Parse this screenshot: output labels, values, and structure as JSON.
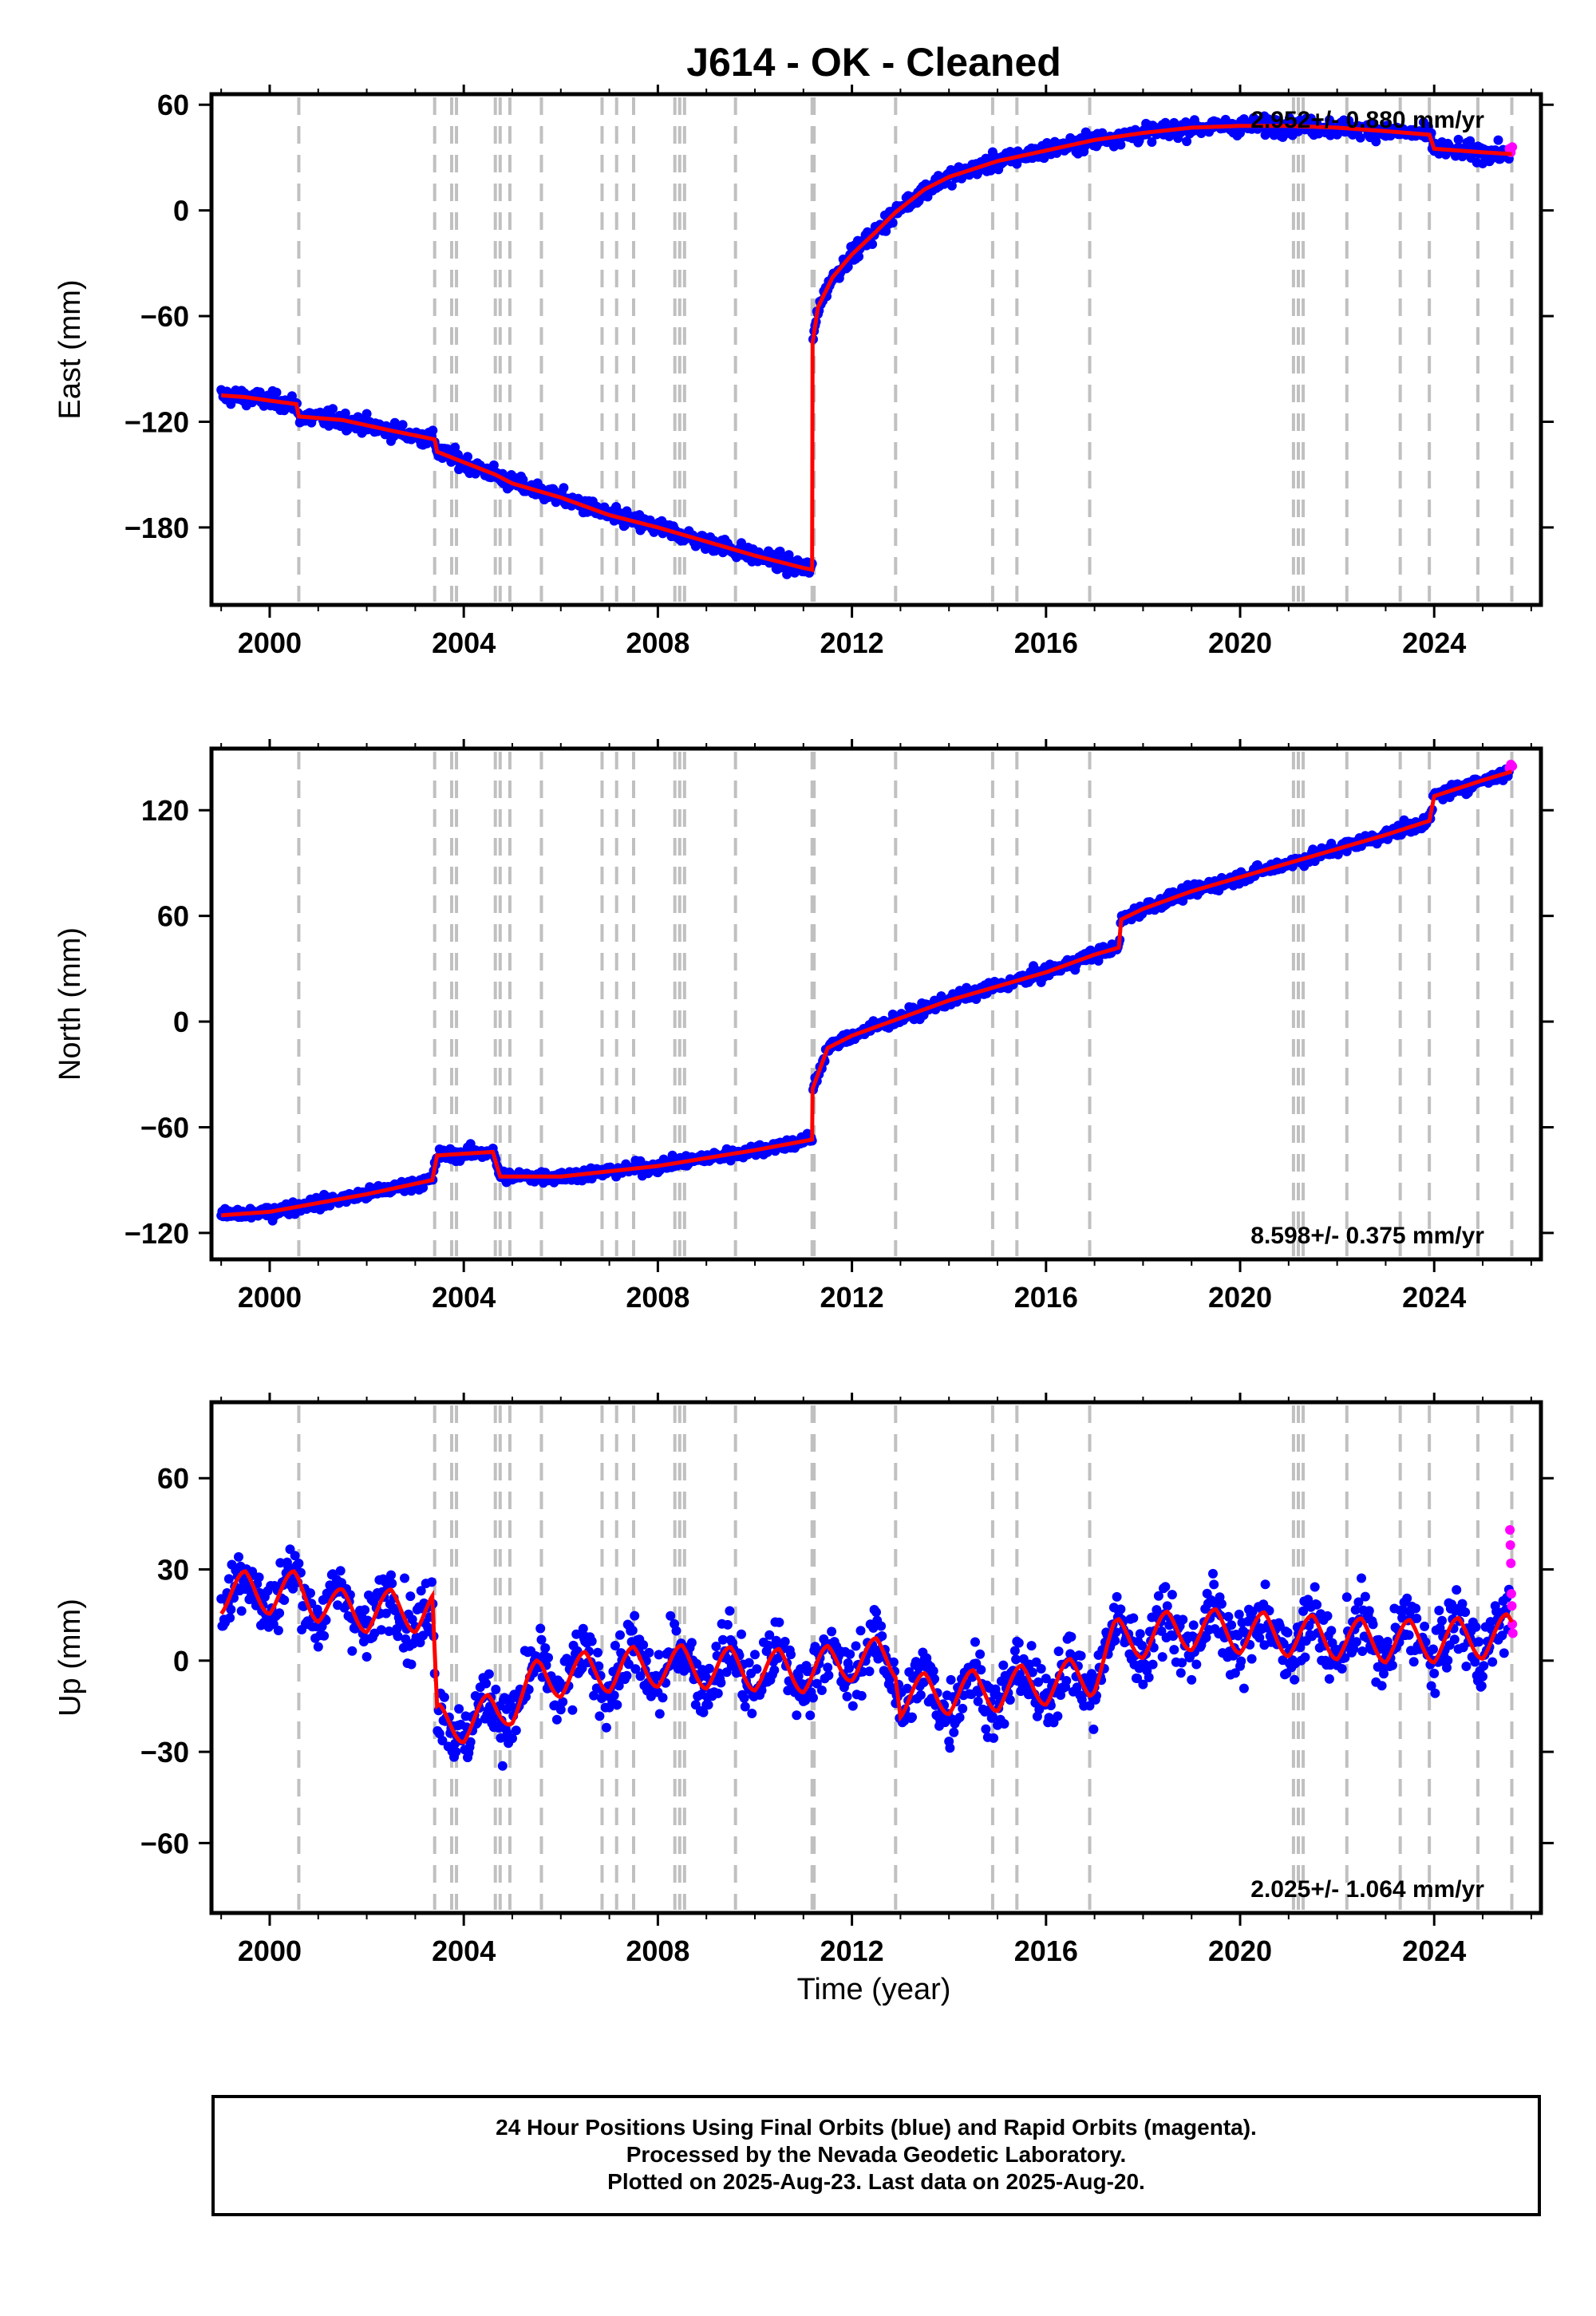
{
  "title": "J614  - OK - Cleaned",
  "caption": {
    "line1": "24 Hour Positions Using Final Orbits (blue) and Rapid Orbits (magenta).",
    "line2": "Processed by the Nevada Geodetic Laboratory.",
    "line3": "Plotted on 2025-Aug-23. Last data on 2025-Aug-20."
  },
  "colors": {
    "final_orbits": "#0000ff",
    "rapid_orbits": "#ff00ff",
    "model": "#ff0000",
    "event_lines": "#c0c0c0"
  },
  "chart_data": [
    {
      "type": "scatter",
      "panel": "east",
      "ylabel": "East (mm)",
      "xlabel": "",
      "xlim": [
        1998.8,
        2026.2
      ],
      "ylim": [
        -224,
        66
      ],
      "xticks": [
        2000,
        2004,
        2008,
        2012,
        2016,
        2020,
        2024
      ],
      "yticks": [
        60,
        0,
        -60,
        -120,
        -180
      ],
      "rate_label": "2.952+/- 0.880 mm/yr",
      "rate_position": "top-right",
      "event_lines": [
        2000.6,
        2003.4,
        2003.75,
        2003.85,
        2004.65,
        2004.75,
        2004.95,
        2005.6,
        2006.85,
        2007.15,
        2007.5,
        2008.35,
        2008.45,
        2008.55,
        2009.6,
        2011.18,
        2011.22,
        2012.9,
        2014.9,
        2015.4,
        2016.9,
        2021.1,
        2021.2,
        2021.3,
        2022.2,
        2023.3,
        2023.9,
        2024.9,
        2025.6
      ],
      "model_curve": [
        [
          1999.0,
          -105
        ],
        [
          1999.5,
          -106
        ],
        [
          2000.0,
          -108
        ],
        [
          2000.55,
          -110
        ],
        [
          2000.6,
          -117
        ],
        [
          2001.5,
          -119
        ],
        [
          2002.5,
          -125
        ],
        [
          2003.4,
          -130
        ],
        [
          2003.45,
          -137
        ],
        [
          2004.0,
          -143
        ],
        [
          2004.65,
          -150
        ],
        [
          2005.0,
          -155
        ],
        [
          2006.0,
          -163
        ],
        [
          2007.0,
          -173
        ],
        [
          2008.0,
          -180
        ],
        [
          2009.0,
          -188
        ],
        [
          2010.0,
          -196
        ],
        [
          2011.0,
          -203
        ],
        [
          2011.18,
          -204
        ],
        [
          2011.19,
          -75
        ],
        [
          2011.3,
          -55
        ],
        [
          2011.6,
          -38
        ],
        [
          2012.0,
          -25
        ],
        [
          2012.5,
          -12
        ],
        [
          2012.9,
          -1
        ],
        [
          2013.5,
          12
        ],
        [
          2014.0,
          19
        ],
        [
          2015.0,
          28
        ],
        [
          2016.0,
          34
        ],
        [
          2017.0,
          40
        ],
        [
          2018.0,
          44
        ],
        [
          2019.0,
          47
        ],
        [
          2020.0,
          48
        ],
        [
          2021.0,
          48
        ],
        [
          2022.0,
          47
        ],
        [
          2023.0,
          45
        ],
        [
          2023.9,
          43
        ],
        [
          2024.0,
          35
        ],
        [
          2025.0,
          33
        ],
        [
          2025.6,
          32
        ]
      ],
      "rapid_points": [
        [
          2025.55,
          35
        ],
        [
          2025.58,
          33
        ],
        [
          2025.61,
          36
        ]
      ],
      "scatter_sd": 4
    },
    {
      "type": "scatter",
      "panel": "north",
      "ylabel": "North (mm)",
      "xlabel": "",
      "xlim": [
        1998.8,
        2026.2
      ],
      "ylim": [
        -135,
        155
      ],
      "xticks": [
        2000,
        2004,
        2008,
        2012,
        2016,
        2020,
        2024
      ],
      "yticks": [
        120,
        60,
        0,
        -60,
        -120
      ],
      "rate_label": "8.598+/- 0.375 mm/yr",
      "rate_position": "bottom-right",
      "event_lines": [
        2000.6,
        2003.4,
        2003.75,
        2003.85,
        2004.65,
        2004.75,
        2004.95,
        2005.6,
        2006.85,
        2007.15,
        2007.5,
        2008.35,
        2008.45,
        2008.55,
        2009.6,
        2011.18,
        2011.22,
        2012.9,
        2014.9,
        2015.4,
        2016.9,
        2021.1,
        2021.2,
        2021.3,
        2022.2,
        2023.3,
        2023.9,
        2024.9,
        2025.6
      ],
      "model_curve": [
        [
          1999.0,
          -110
        ],
        [
          2000.0,
          -108
        ],
        [
          2000.6,
          -105
        ],
        [
          2002.0,
          -98
        ],
        [
          2003.35,
          -90
        ],
        [
          2003.45,
          -76
        ],
        [
          2004.6,
          -74
        ],
        [
          2004.75,
          -88
        ],
        [
          2006.0,
          -88
        ],
        [
          2008.0,
          -82
        ],
        [
          2010.0,
          -73
        ],
        [
          2011.18,
          -67
        ],
        [
          2011.19,
          -38
        ],
        [
          2011.5,
          -15
        ],
        [
          2012.0,
          -8
        ],
        [
          2013.0,
          2
        ],
        [
          2014.0,
          12
        ],
        [
          2015.0,
          20
        ],
        [
          2016.0,
          28
        ],
        [
          2017.0,
          38
        ],
        [
          2017.5,
          42
        ],
        [
          2017.55,
          58
        ],
        [
          2018.0,
          64
        ],
        [
          2019.0,
          74
        ],
        [
          2020.0,
          82
        ],
        [
          2021.0,
          90
        ],
        [
          2022.0,
          98
        ],
        [
          2023.0,
          106
        ],
        [
          2023.9,
          114
        ],
        [
          2024.0,
          128
        ],
        [
          2025.0,
          137
        ],
        [
          2025.6,
          142
        ]
      ],
      "rapid_points": [
        [
          2025.55,
          144
        ],
        [
          2025.58,
          146
        ],
        [
          2025.61,
          145
        ]
      ],
      "scatter_sd": 3
    },
    {
      "type": "scatter",
      "panel": "up",
      "ylabel": "Up (mm)",
      "xlabel": "Time (year)",
      "xlim": [
        1998.8,
        2026.2
      ],
      "ylim": [
        -83,
        85
      ],
      "xticks": [
        2000,
        2004,
        2008,
        2012,
        2016,
        2020,
        2024
      ],
      "yticks": [
        60,
        30,
        0,
        -30,
        -60
      ],
      "rate_label": "2.025+/- 1.064 mm/yr",
      "rate_position": "bottom-right",
      "event_lines": [
        2000.6,
        2003.4,
        2003.75,
        2003.85,
        2004.65,
        2004.75,
        2004.95,
        2005.6,
        2006.85,
        2007.15,
        2007.5,
        2008.35,
        2008.45,
        2008.55,
        2009.6,
        2011.18,
        2011.22,
        2012.9,
        2014.9,
        2015.4,
        2016.9,
        2021.1,
        2021.2,
        2021.3,
        2022.2,
        2023.3,
        2023.9,
        2024.9,
        2025.6
      ],
      "model_offsets": [
        [
          1999.0,
          20
        ],
        [
          2000.6,
          20
        ],
        [
          2001.5,
          14
        ],
        [
          2003.35,
          14
        ],
        [
          2003.45,
          -24
        ],
        [
          2004.7,
          -20
        ],
        [
          2005.6,
          -8
        ],
        [
          2008.0,
          -4
        ],
        [
          2011.2,
          -6
        ],
        [
          2012.0,
          -2
        ],
        [
          2012.9,
          -2
        ],
        [
          2013.0,
          -14
        ],
        [
          2015.0,
          -12
        ],
        [
          2016.9,
          -8
        ],
        [
          2017.4,
          4
        ],
        [
          2019.0,
          8
        ],
        [
          2021.0,
          6
        ],
        [
          2023.0,
          4
        ],
        [
          2024.0,
          4
        ],
        [
          2025.6,
          6
        ]
      ],
      "seasonal_amplitude": 8,
      "rapid_points": [
        [
          2025.56,
          43
        ],
        [
          2025.57,
          38
        ],
        [
          2025.58,
          32
        ],
        [
          2025.59,
          22
        ],
        [
          2025.6,
          18
        ],
        [
          2025.61,
          12
        ],
        [
          2025.62,
          9
        ]
      ],
      "scatter_sd": 9
    }
  ]
}
